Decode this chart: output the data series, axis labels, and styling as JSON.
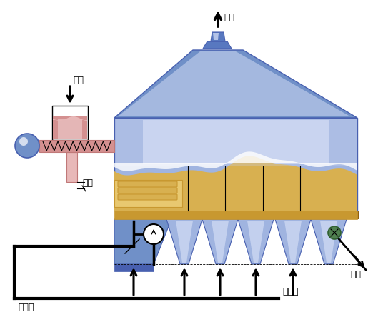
{
  "bg_color": "#ffffff",
  "labels": {
    "tail_gas": "尾气",
    "feed": "湿料",
    "steam": "蒸汽",
    "hot_air": "热空气",
    "cold_air": "冷空气",
    "product": "干品"
  },
  "colors": {
    "blue_dark": "#4860b0",
    "blue_mid": "#7090c8",
    "blue_light": "#a0b4e0",
    "blue_pale": "#c8d4f0",
    "blue_very_pale": "#dce4f8",
    "gold_dark": "#c89830",
    "gold_mid": "#d8b050",
    "gold_light": "#e8c870",
    "pink_dark": "#c07878",
    "pink_mid": "#d49090",
    "pink_light": "#e8b8b8",
    "white": "#ffffff",
    "black": "#000000",
    "green": "#508050",
    "chimney_blue": "#5878c0"
  }
}
